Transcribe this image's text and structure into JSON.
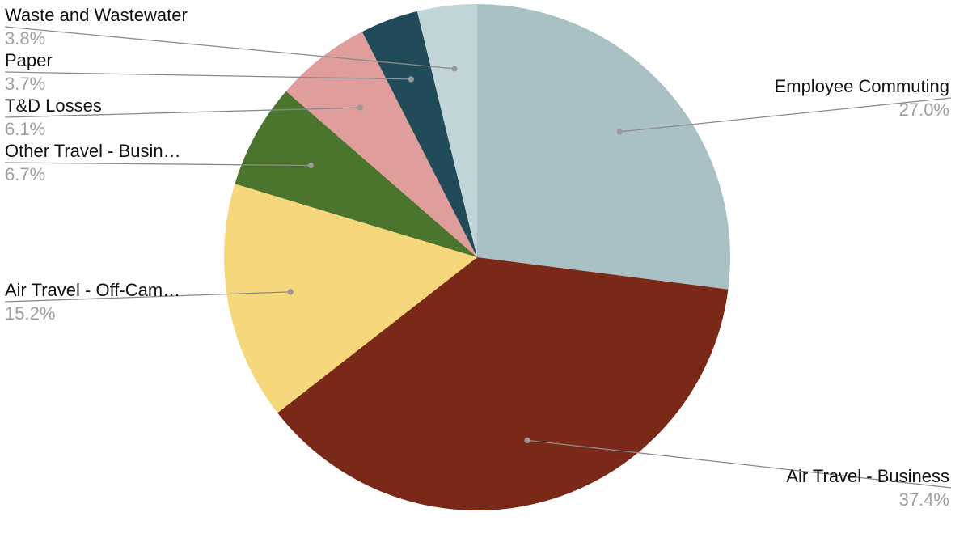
{
  "chart_data": {
    "type": "pie",
    "title": "",
    "slices": [
      {
        "label": "Employee Commuting",
        "value": 27.0,
        "value_text": "27.0%",
        "color": "#a9c0c5"
      },
      {
        "label": "Air Travel - Business",
        "value": 37.4,
        "value_text": "37.4%",
        "color": "#7a2918"
      },
      {
        "label": "Air Travel - Off-Cam…",
        "value": 15.2,
        "value_text": "15.2%",
        "color": "#f6d77b"
      },
      {
        "label": "Other Travel - Busin…",
        "value": 6.7,
        "value_text": "6.7%",
        "color": "#4b742d"
      },
      {
        "label": "T&D Losses",
        "value": 6.1,
        "value_text": "6.1%",
        "color": "#df9e9c"
      },
      {
        "label": "Paper",
        "value": 3.7,
        "value_text": "3.7%",
        "color": "#224b5a"
      },
      {
        "label": "Waste and Wastewater",
        "value": 3.8,
        "value_text": "3.8%",
        "color": "#c1d4d8"
      }
    ],
    "start_angle": "12 o'clock",
    "direction": "clockwise",
    "legend": "none"
  }
}
